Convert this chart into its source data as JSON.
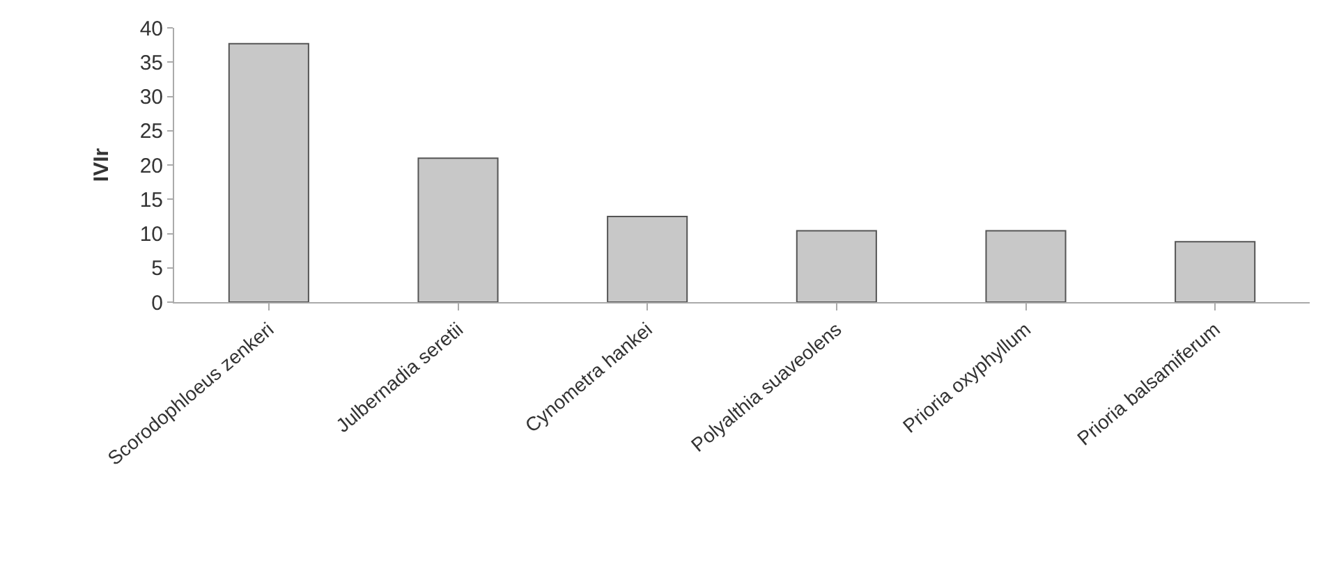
{
  "chart_data": {
    "type": "bar",
    "ylabel": "IVIr",
    "categories": [
      "Scorodophloeus zenkeri",
      "Julbernadia seretii",
      "Cynometra hankei",
      "Polyalthia suaveolens",
      "Prioria oxyphyllum",
      "Prioria balsamiferum"
    ],
    "values": [
      37.7,
      21.0,
      12.5,
      10.4,
      10.4,
      8.8
    ],
    "color": "#c8c8c8",
    "ylim": [
      0,
      40
    ],
    "yticks": [
      0,
      5,
      10,
      15,
      20,
      25,
      30,
      35,
      40
    ]
  }
}
